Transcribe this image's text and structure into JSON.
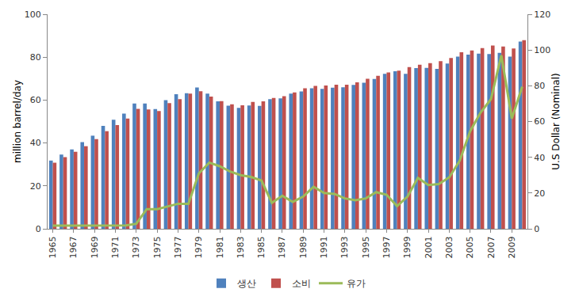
{
  "chart_data": {
    "type": "bar",
    "categories": [
      "1965",
      null,
      "1967",
      null,
      "1969",
      null,
      "1971",
      null,
      "1973",
      null,
      "1975",
      null,
      "1977",
      null,
      "1979",
      null,
      "1981",
      null,
      "1983",
      null,
      "1985",
      null,
      "1987",
      null,
      "1989",
      null,
      "1991",
      null,
      "1993",
      null,
      "1995",
      null,
      "1997",
      null,
      "1999",
      null,
      "2001",
      null,
      "2003",
      null,
      "2005",
      null,
      "2007",
      null,
      "2009",
      null
    ],
    "series": [
      {
        "name": "생산",
        "type": "bar",
        "color": "#4f81bd",
        "values": [
          31.8,
          34.6,
          37.0,
          40.4,
          43.4,
          48.0,
          50.8,
          53.7,
          58.4,
          58.4,
          55.8,
          60.0,
          62.7,
          63.2,
          65.9,
          63.0,
          59.4,
          57.4,
          56.4,
          57.5,
          57.3,
          60.4,
          60.8,
          63.0,
          64.0,
          65.5,
          65.2,
          65.8,
          66.0,
          67.1,
          68.1,
          69.8,
          72.2,
          73.4,
          72.2,
          74.9,
          75.0,
          74.5,
          77.0,
          80.3,
          81.2,
          81.6,
          81.5,
          82.0,
          80.3,
          87.3
        ]
      },
      {
        "name": "소비",
        "type": "bar",
        "color": "#c0504d",
        "values": [
          30.8,
          33.4,
          35.9,
          38.5,
          41.8,
          45.5,
          48.3,
          51.4,
          55.9,
          55.6,
          54.9,
          58.6,
          60.4,
          63.0,
          64.1,
          61.6,
          59.5,
          58.0,
          57.6,
          59.1,
          59.4,
          61.0,
          61.8,
          63.6,
          65.5,
          66.6,
          66.8,
          67.2,
          67.2,
          68.3,
          69.9,
          71.3,
          72.9,
          73.7,
          75.4,
          76.5,
          77.2,
          78.1,
          79.6,
          82.3,
          83.1,
          84.2,
          85.4,
          85.0,
          84.0,
          87.9
        ]
      },
      {
        "name": "유가",
        "type": "line",
        "axis": "y2",
        "color": "#9bbb59",
        "values": [
          1.8,
          1.8,
          1.8,
          1.8,
          1.8,
          1.8,
          1.8,
          1.9,
          2.8,
          11.0,
          11.0,
          12.5,
          14.0,
          14.0,
          31.0,
          37.0,
          35.0,
          32.0,
          30.0,
          29.0,
          27.0,
          14.5,
          18.5,
          15.0,
          18.0,
          23.5,
          20.0,
          19.5,
          17.0,
          16.0,
          17.0,
          20.5,
          19.0,
          12.7,
          18.0,
          28.5,
          24.5,
          25.0,
          28.8,
          38.0,
          54.5,
          65.0,
          72.5,
          97.0,
          61.7,
          79.5
        ]
      }
    ],
    "y_label": "million barrel/day",
    "y2_label": "U.S Dollar (Nominal)",
    "ylim": [
      0,
      100
    ],
    "yticks": [
      0,
      20,
      40,
      60,
      80,
      100
    ],
    "y2lim": [
      0,
      120
    ],
    "y2ticks": [
      0,
      20,
      40,
      60,
      80,
      100,
      120
    ],
    "grid": false,
    "legend": "bottom"
  }
}
